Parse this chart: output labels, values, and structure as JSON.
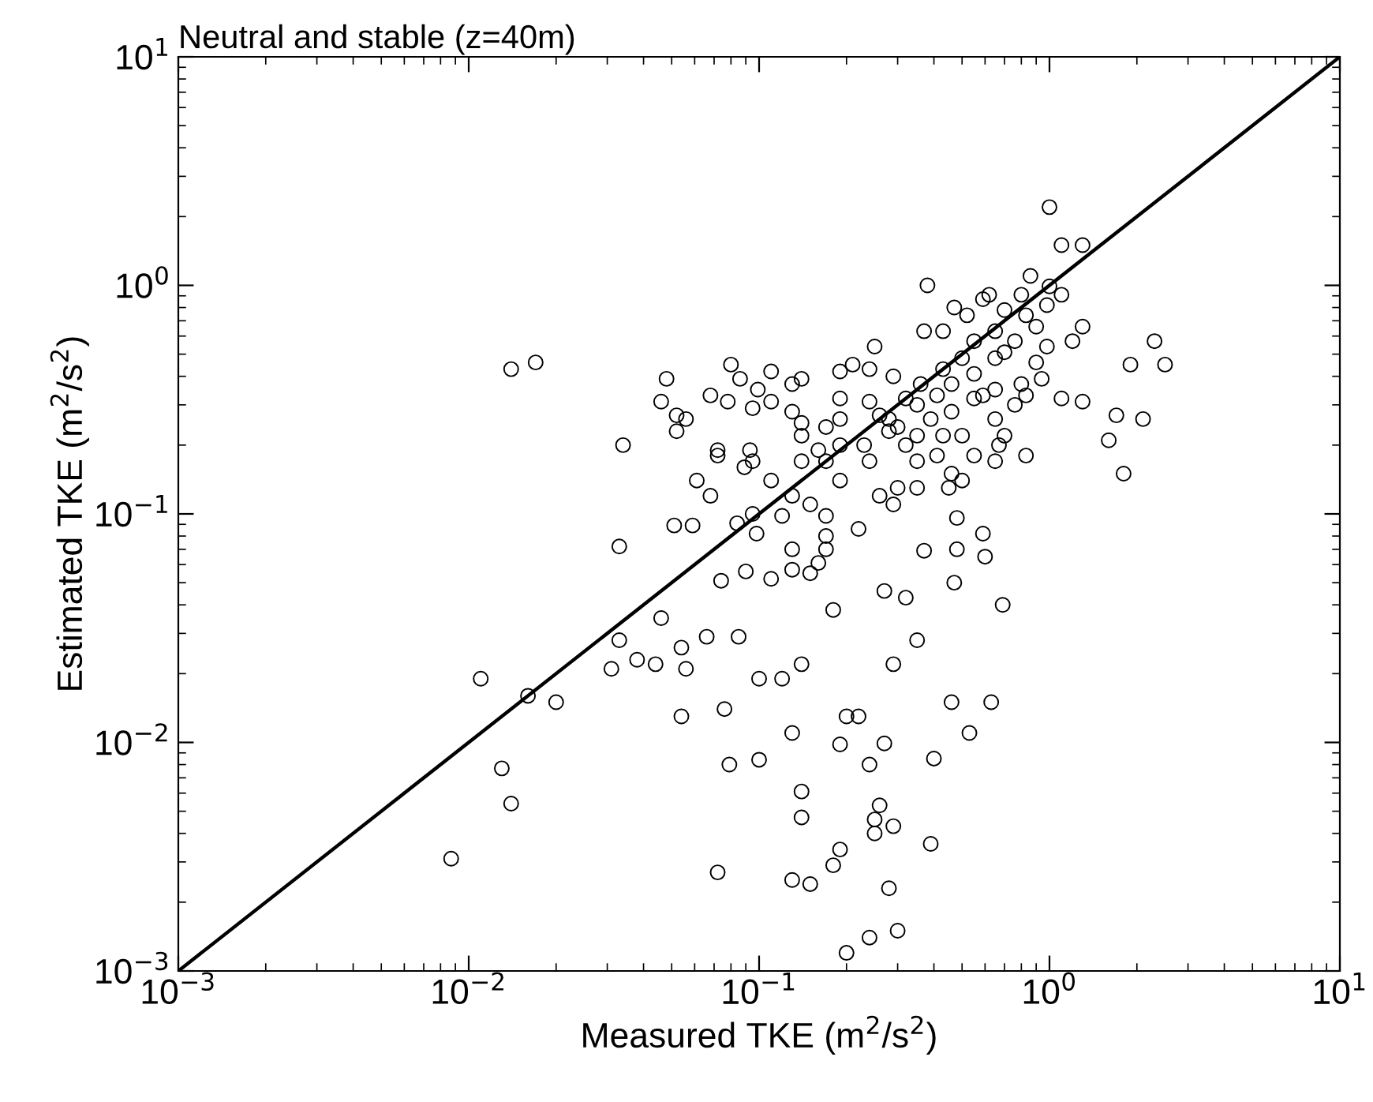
{
  "chart_data": {
    "type": "scatter",
    "title": "Neutral and stable (z=40m)",
    "xlabel": "Measured TKE (m$^{2}$/s$^{2}$)",
    "ylabel": "Estimated TKE (m$^{2}$/s$^{2}$)",
    "log": "xy",
    "xlim": [
      0.001,
      10
    ],
    "ylim": [
      0.001,
      10
    ],
    "xticks": [
      {
        "value": 0.001,
        "label": "10$^{−3}$"
      },
      {
        "value": 0.01,
        "label": "10$^{−2}$"
      },
      {
        "value": 0.1,
        "label": "10$^{−1}$"
      },
      {
        "value": 1,
        "label": "10$^{0}$"
      },
      {
        "value": 10,
        "label": "10$^{1}$"
      }
    ],
    "yticks": [
      {
        "value": 0.001,
        "label": "10$^{−3}$"
      },
      {
        "value": 0.01,
        "label": "10$^{−2}$"
      },
      {
        "value": 0.1,
        "label": "10$^{−1}$"
      },
      {
        "value": 1,
        "label": "10$^{0}$"
      },
      {
        "value": 10,
        "label": "10$^{1}$"
      }
    ],
    "grid": false,
    "series": [
      {
        "marker": "circle",
        "color": "#000000",
        "x": [
          0.014,
          0.017,
          0.048,
          0.046,
          0.052,
          0.052,
          0.056,
          0.034,
          0.072,
          0.072,
          0.089,
          0.061,
          0.068,
          0.051,
          0.059,
          0.084,
          0.033,
          0.074,
          0.09,
          0.046,
          0.08,
          0.086,
          0.068,
          0.078,
          0.011,
          0.016,
          0.02,
          0.013,
          0.014,
          0.0087,
          0.031,
          0.033,
          0.038,
          0.044,
          0.054,
          0.056,
          0.066,
          0.085,
          0.054,
          0.076,
          0.079,
          0.072,
          0.35,
          0.1,
          0.12,
          0.14,
          0.29,
          0.2,
          0.22,
          0.46,
          0.63,
          0.13,
          0.19,
          0.27,
          0.53,
          0.1,
          0.24,
          0.4,
          0.14,
          0.14,
          0.26,
          0.25,
          0.25,
          0.29,
          0.39,
          0.19,
          0.18,
          0.13,
          0.15,
          0.28,
          0.3,
          0.24,
          0.2,
          1.0,
          1.1,
          1.3,
          0.38,
          2.3,
          2.5,
          1.9,
          2.1,
          1.8,
          1.7,
          1.6,
          1.3,
          1.1,
          1.2,
          1.3,
          1.1,
          0.86,
          0.47,
          0.43,
          0.37,
          0.25,
          0.21,
          0.19,
          0.24,
          0.29,
          0.11,
          0.14,
          0.13,
          0.099,
          0.095,
          0.11,
          0.13,
          0.14,
          0.14,
          0.17,
          0.19,
          0.19,
          0.19,
          0.24,
          0.26,
          0.28,
          0.23,
          0.24,
          0.16,
          0.14,
          0.17,
          0.093,
          0.095,
          0.11,
          0.095,
          0.13,
          0.12,
          0.15,
          0.17,
          0.098,
          0.22,
          0.19,
          0.26,
          0.29,
          0.3,
          0.35,
          0.45,
          0.48,
          0.59,
          0.13,
          0.17,
          0.17,
          0.16,
          0.15,
          0.13,
          0.11,
          0.37,
          0.48,
          0.6,
          0.47,
          0.27,
          0.32,
          0.69,
          0.18,
          0.28,
          0.35,
          0.41,
          0.46,
          0.55,
          0.65,
          0.76,
          0.9,
          0.98,
          0.7,
          0.59,
          0.8,
          1.0,
          0.65,
          0.55,
          0.7,
          0.9,
          0.94,
          0.8,
          0.65,
          0.55,
          0.46,
          0.39,
          0.35,
          0.43,
          0.5,
          0.65,
          0.7,
          0.55,
          0.65,
          0.46,
          0.5,
          0.41,
          0.35,
          0.32,
          0.3,
          0.36,
          0.43,
          0.5,
          0.59,
          0.76,
          0.83,
          0.98,
          0.83,
          0.62,
          0.52,
          0.32,
          0.83,
          0.67
        ],
        "values": [
          0.43,
          0.46,
          0.39,
          0.31,
          0.27,
          0.23,
          0.26,
          0.2,
          0.19,
          0.18,
          0.16,
          0.14,
          0.12,
          0.089,
          0.089,
          0.091,
          0.072,
          0.051,
          0.056,
          0.035,
          0.45,
          0.39,
          0.33,
          0.31,
          0.019,
          0.016,
          0.015,
          0.0077,
          0.0054,
          0.0031,
          0.021,
          0.028,
          0.023,
          0.022,
          0.026,
          0.021,
          0.029,
          0.029,
          0.013,
          0.014,
          0.008,
          0.0027,
          0.028,
          0.019,
          0.019,
          0.022,
          0.022,
          0.013,
          0.013,
          0.015,
          0.015,
          0.011,
          0.0098,
          0.0099,
          0.011,
          0.0084,
          0.008,
          0.0085,
          0.0061,
          0.0047,
          0.0053,
          0.0046,
          0.004,
          0.0043,
          0.0036,
          0.0034,
          0.0029,
          0.0025,
          0.0024,
          0.0023,
          0.0015,
          0.0014,
          0.0012,
          2.2,
          1.5,
          1.5,
          1.0,
          0.57,
          0.45,
          0.45,
          0.26,
          0.15,
          0.27,
          0.21,
          0.31,
          0.32,
          0.57,
          0.66,
          0.91,
          1.1,
          0.8,
          0.63,
          0.63,
          0.54,
          0.45,
          0.42,
          0.43,
          0.4,
          0.42,
          0.39,
          0.37,
          0.35,
          0.29,
          0.31,
          0.28,
          0.25,
          0.22,
          0.24,
          0.32,
          0.26,
          0.2,
          0.31,
          0.27,
          0.23,
          0.2,
          0.17,
          0.19,
          0.17,
          0.17,
          0.19,
          0.17,
          0.14,
          0.1,
          0.12,
          0.098,
          0.11,
          0.098,
          0.082,
          0.086,
          0.14,
          0.12,
          0.11,
          0.13,
          0.13,
          0.13,
          0.096,
          0.082,
          0.07,
          0.08,
          0.07,
          0.061,
          0.055,
          0.057,
          0.052,
          0.069,
          0.07,
          0.065,
          0.05,
          0.046,
          0.043,
          0.04,
          0.038,
          0.26,
          0.3,
          0.33,
          0.37,
          0.41,
          0.48,
          0.57,
          0.66,
          0.82,
          0.78,
          0.87,
          0.91,
          0.99,
          0.63,
          0.57,
          0.51,
          0.46,
          0.39,
          0.37,
          0.35,
          0.32,
          0.28,
          0.26,
          0.22,
          0.22,
          0.22,
          0.26,
          0.22,
          0.18,
          0.17,
          0.15,
          0.14,
          0.18,
          0.17,
          0.2,
          0.24,
          0.37,
          0.43,
          0.48,
          0.33,
          0.3,
          0.33,
          0.54,
          0.74,
          0.91,
          0.74,
          0.32,
          0.18,
          0.2
        ]
      },
      {
        "type": "line",
        "marker": "none",
        "line_style": "solid",
        "color": "#000000",
        "x": [
          0.001,
          10
        ],
        "values": [
          0.001,
          10
        ]
      }
    ]
  }
}
